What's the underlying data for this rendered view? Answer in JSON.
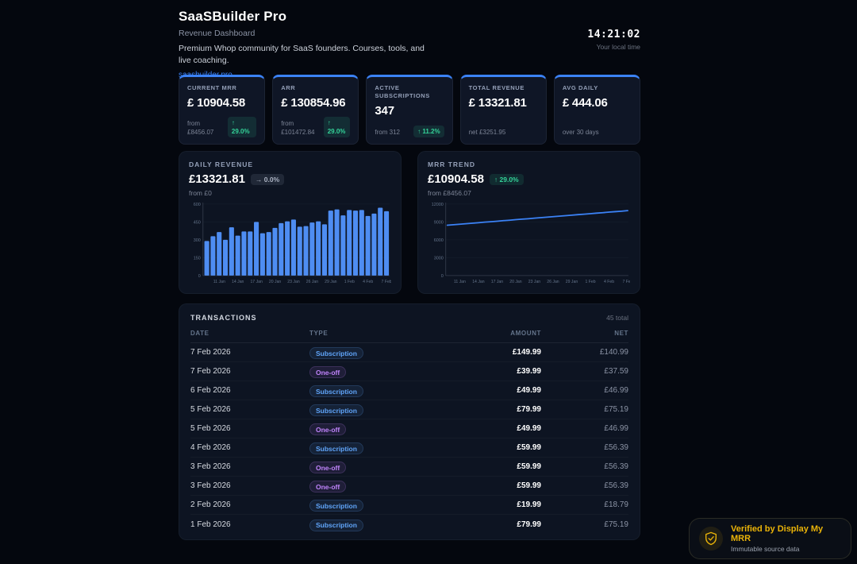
{
  "header": {
    "title": "SaaSBuilder Pro",
    "subtitle": "Revenue Dashboard",
    "description": "Premium Whop community for SaaS founders. Courses, tools, and live coaching.",
    "link": "saasbuilder.pro",
    "clock": {
      "time": "14:21:02",
      "label": "Your local time"
    }
  },
  "kpis": [
    {
      "label": "CURRENT MRR",
      "value": "£ 10904.58",
      "sub": "from £8456.07",
      "badge": "↑ 29.0%",
      "badge_style": "stacked"
    },
    {
      "label": "ARR",
      "value": "£ 130854.96",
      "sub": "from £101472.84",
      "badge": "↑ 29.0%",
      "badge_style": "stacked"
    },
    {
      "label": "ACTIVE SUBSCRIPTIONS",
      "value": "347",
      "sub": "from 312",
      "badge": "↑ 11.2%",
      "badge_style": "inline"
    },
    {
      "label": "TOTAL REVENUE",
      "value": "£ 13321.81",
      "sub": "net £3251.95",
      "badge": null
    },
    {
      "label": "AVG DAILY",
      "value": "£ 444.06",
      "sub": "over 30 days",
      "badge": null
    }
  ],
  "panels": {
    "daily_revenue": {
      "label": "DAILY REVENUE",
      "value": "£13321.81",
      "badge": "→ 0.0%",
      "badge_type": "flat",
      "sub": "from £0"
    },
    "mrr_trend": {
      "label": "MRR TREND",
      "value": "£10904.58",
      "badge": "↑ 29.0%",
      "badge_type": "green",
      "sub": "from £8456.07"
    }
  },
  "chart_data": [
    {
      "type": "bar",
      "title": "DAILY REVENUE",
      "values": [
        290,
        330,
        365,
        300,
        405,
        335,
        370,
        370,
        450,
        355,
        365,
        400,
        440,
        455,
        470,
        410,
        415,
        445,
        455,
        430,
        545,
        555,
        505,
        550,
        545,
        550,
        500,
        520,
        570,
        540
      ],
      "xticklabels": [
        "11 Jan",
        "14 Jan",
        "17 Jan",
        "20 Jan",
        "23 Jan",
        "26 Jan",
        "29 Jan",
        "1 Feb",
        "4 Feb",
        "7 Feb"
      ],
      "tick_offset": 2,
      "tick_every": 3,
      "yticks": [
        0,
        150,
        300,
        450,
        600
      ],
      "ylim": [
        0,
        600
      ],
      "xlabel": "",
      "ylabel": "",
      "grid": true,
      "bar_color": "#4e8df2"
    },
    {
      "type": "line",
      "title": "MRR TREND",
      "values": [
        8456,
        8541,
        8625,
        8709,
        8794,
        8878,
        8963,
        9047,
        9131,
        9216,
        9300,
        9384,
        9469,
        9553,
        9638,
        9722,
        9806,
        9891,
        9975,
        10059,
        10144,
        10228,
        10313,
        10397,
        10481,
        10566,
        10650,
        10734,
        10819,
        10905
      ],
      "xticklabels": [
        "11 Jan",
        "14 Jan",
        "17 Jan",
        "20 Jan",
        "23 Jan",
        "26 Jan",
        "29 Jan",
        "1 Feb",
        "4 Feb",
        "7 Feb"
      ],
      "tick_offset": 2,
      "tick_every": 3,
      "yticks": [
        0,
        3000,
        6000,
        9000,
        12000
      ],
      "ylim": [
        0,
        12000
      ],
      "xlabel": "",
      "ylabel": "",
      "grid": true,
      "line_color": "#3b82f6"
    }
  ],
  "transactions": {
    "title": "TRANSACTIONS",
    "total": "45 total",
    "columns": [
      "DATE",
      "TYPE",
      "AMOUNT",
      "NET"
    ],
    "rows": [
      {
        "date": "7 Feb 2026",
        "type": "Subscription",
        "amount": "£149.99",
        "net": "£140.99"
      },
      {
        "date": "7 Feb 2026",
        "type": "One-off",
        "amount": "£39.99",
        "net": "£37.59"
      },
      {
        "date": "6 Feb 2026",
        "type": "Subscription",
        "amount": "£49.99",
        "net": "£46.99"
      },
      {
        "date": "5 Feb 2026",
        "type": "Subscription",
        "amount": "£79.99",
        "net": "£75.19"
      },
      {
        "date": "5 Feb 2026",
        "type": "One-off",
        "amount": "£49.99",
        "net": "£46.99"
      },
      {
        "date": "4 Feb 2026",
        "type": "Subscription",
        "amount": "£59.99",
        "net": "£56.39"
      },
      {
        "date": "3 Feb 2026",
        "type": "One-off",
        "amount": "£59.99",
        "net": "£56.39"
      },
      {
        "date": "3 Feb 2026",
        "type": "One-off",
        "amount": "£59.99",
        "net": "£56.39"
      },
      {
        "date": "2 Feb 2026",
        "type": "Subscription",
        "amount": "£19.99",
        "net": "£18.79"
      },
      {
        "date": "1 Feb 2026",
        "type": "Subscription",
        "amount": "£79.99",
        "net": "£75.19"
      }
    ]
  },
  "verified": {
    "title": "Verified by Display My MRR",
    "subtitle": "Immutable source data",
    "icon": "shield-check-icon"
  },
  "colors": {
    "background": "#04070e",
    "panel": "#0d1422",
    "card": "#0f1626",
    "accent": "#3b82f6",
    "bar": "#4e8df2",
    "green": "#34d399",
    "subscription_blue": "#60a5fa",
    "oneoff_purple": "#c084fc",
    "amber": "#eab308",
    "axis_text": "#64748b"
  }
}
